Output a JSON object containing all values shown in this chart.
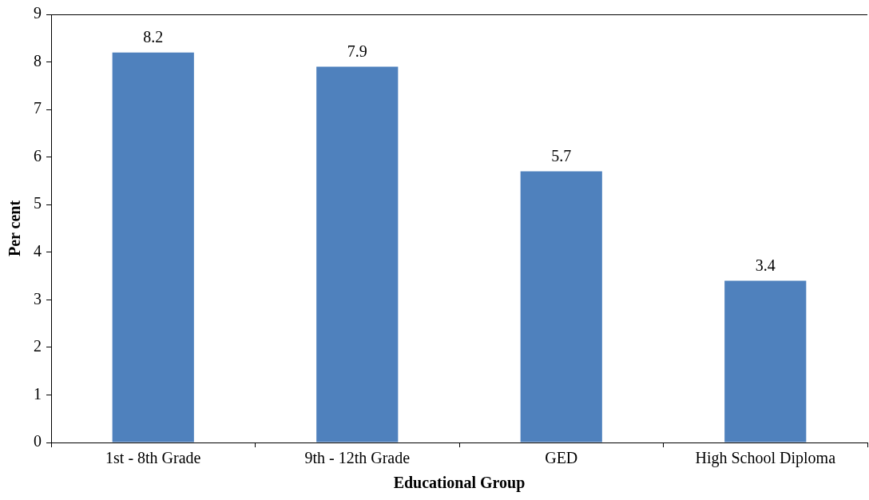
{
  "chart_data": {
    "type": "bar",
    "xlabel": "Educational Group",
    "ylabel": "Per cent",
    "categories": [
      "1st - 8th Grade",
      "9th - 12th Grade",
      "GED",
      "High School Diploma"
    ],
    "values": [
      8.2,
      7.9,
      5.7,
      3.4
    ],
    "color": "#4f81bd",
    "ylim": [
      0,
      9
    ],
    "yticks": [
      0,
      1,
      2,
      3,
      4,
      5,
      6,
      7,
      8,
      9
    ],
    "grid": false,
    "legend": false,
    "data_labels": true
  }
}
